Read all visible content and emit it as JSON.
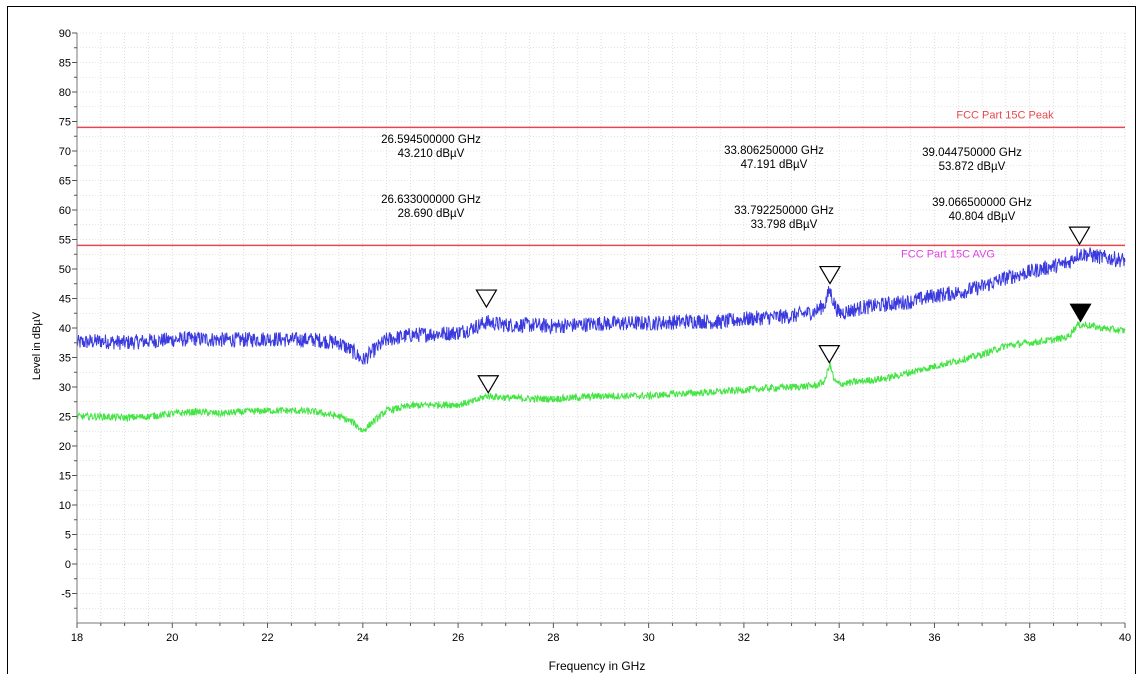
{
  "chart_data": {
    "type": "line",
    "xlabel": "Frequency in GHz",
    "ylabel": "Level in dBµV",
    "xlim": [
      18,
      40
    ],
    "ylim": [
      -10,
      90
    ],
    "x_ticks": [
      18,
      20,
      22,
      24,
      26,
      28,
      30,
      32,
      34,
      36,
      38,
      40
    ],
    "y_ticks": [
      -5,
      0,
      5,
      10,
      15,
      20,
      25,
      30,
      35,
      40,
      45,
      50,
      55,
      60,
      65,
      70,
      75,
      80,
      85,
      90
    ],
    "grid": true,
    "limit_lines": [
      {
        "name": "FCC Part 15C Peak",
        "value": 74,
        "color": "#e8484c",
        "label_color": "#e8484c"
      },
      {
        "name": "FCC Part 15C AVG",
        "value": 54,
        "color": "#e8484c",
        "label_color": "#e040e0"
      }
    ],
    "series": [
      {
        "color": "#3a3adf",
        "noise": 1.3,
        "x": [
          18,
          18.5,
          19,
          19.5,
          20,
          20.5,
          21,
          21.5,
          22,
          22.5,
          23,
          23.5,
          23.8,
          24,
          24.2,
          24.5,
          25,
          25.5,
          26,
          26.3,
          26.6,
          27,
          27.5,
          28,
          28.5,
          29,
          29.5,
          30,
          30.5,
          31,
          31.5,
          32,
          32.5,
          33,
          33.5,
          33.7,
          33.8,
          33.9,
          34,
          34.5,
          35,
          35.5,
          36,
          36.5,
          37,
          37.5,
          38,
          38.5,
          38.8,
          39,
          39.2,
          39.5,
          40
        ],
        "y": [
          37.5,
          37.8,
          37.5,
          37.8,
          38,
          38.2,
          38,
          38,
          38.2,
          38,
          38,
          37.5,
          36,
          34.5,
          36,
          38,
          38.8,
          39,
          39.2,
          40,
          41,
          40.5,
          40.5,
          40.3,
          40.5,
          40.8,
          40.8,
          40.8,
          41,
          41.2,
          41,
          41.5,
          41.8,
          42,
          42.8,
          44,
          46.5,
          44,
          42.5,
          43.5,
          44,
          44.5,
          45.5,
          46,
          47,
          48.5,
          49.5,
          50.5,
          51,
          52.5,
          52.5,
          52,
          51.5
        ]
      },
      {
        "color": "#44e444",
        "noise": 0.6,
        "x": [
          18,
          18.5,
          19,
          19.5,
          20,
          20.5,
          21,
          21.5,
          22,
          22.5,
          23,
          23.5,
          23.8,
          24,
          24.2,
          24.5,
          25,
          25.5,
          26,
          26.3,
          26.6,
          27,
          27.5,
          28,
          28.5,
          29,
          29.5,
          30,
          30.5,
          31,
          31.5,
          32,
          32.5,
          33,
          33.5,
          33.7,
          33.8,
          33.9,
          34,
          34.5,
          35,
          35.5,
          36,
          36.5,
          37,
          37.5,
          38,
          38.5,
          38.8,
          39,
          39.2,
          39.5,
          40
        ],
        "y": [
          25,
          25,
          24.8,
          25,
          25.5,
          25.8,
          25.5,
          25.8,
          26,
          26,
          25.8,
          25,
          24,
          22.5,
          24,
          26,
          26.8,
          27,
          27,
          27.5,
          28.5,
          28.2,
          28,
          28,
          28.2,
          28.5,
          28.5,
          28.5,
          28.8,
          29,
          29.2,
          29.5,
          29.8,
          30,
          30.2,
          31,
          34,
          31,
          30.5,
          31,
          31.5,
          32.5,
          33.5,
          34.5,
          35.5,
          37,
          37.5,
          38,
          38.5,
          40.5,
          40.5,
          40,
          39.5
        ]
      }
    ],
    "markers": [
      {
        "x": 26.5945,
        "y": 43.21,
        "filled": false,
        "label": [
          "26.594500000 GHz",
          "43.210 dBµV"
        ]
      },
      {
        "x": 26.633,
        "y": 28.69,
        "filled": false,
        "label": [
          "26.633000000 GHz",
          "28.690 dBµV"
        ]
      },
      {
        "x": 33.80625,
        "y": 47.191,
        "filled": false,
        "label": [
          "33.806250000 GHz",
          "47.191 dBµV"
        ]
      },
      {
        "x": 33.79225,
        "y": 33.798,
        "filled": false,
        "label": [
          "33.792250000 GHz",
          "33.798 dBµV"
        ]
      },
      {
        "x": 39.04475,
        "y": 53.872,
        "filled": false,
        "label": [
          "39.044750000 GHz",
          "53.872 dBµV"
        ]
      },
      {
        "x": 39.0665,
        "y": 40.804,
        "filled": true,
        "label": [
          "39.066500000 GHz",
          "40.804 dBµV"
        ]
      }
    ],
    "colors": {
      "grid": "#c8c8c8",
      "axis": "#808080",
      "text": "#000000"
    }
  }
}
